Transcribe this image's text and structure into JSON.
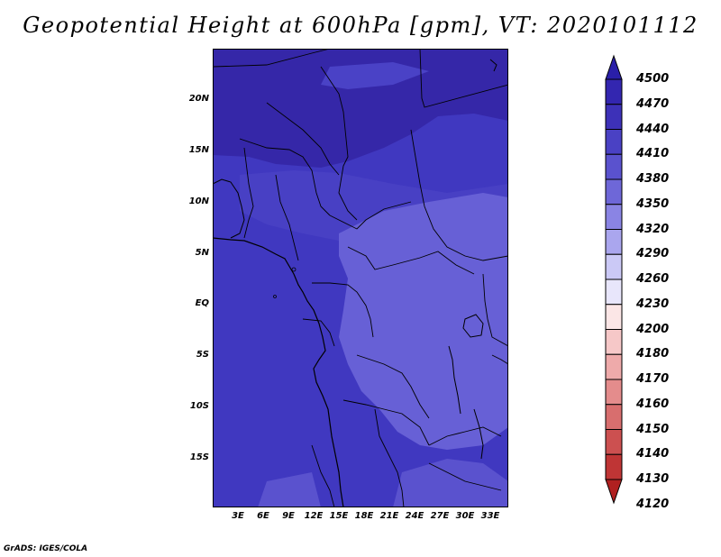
{
  "title": "Geopotential Height at 600hPa [gpm], VT: 2020101112",
  "footer": "GrADS: IGES/COLA",
  "map": {
    "lat_labels": [
      "20N",
      "15N",
      "10N",
      "5N",
      "EQ",
      "5S",
      "10S",
      "15S"
    ],
    "lon_labels": [
      "3E",
      "6E",
      "9E",
      "12E",
      "15E",
      "18E",
      "21E",
      "24E",
      "27E",
      "30E",
      "33E"
    ]
  },
  "colorbar": {
    "levels": [
      "4500",
      "4470",
      "4440",
      "4410",
      "4380",
      "4350",
      "4320",
      "4290",
      "4260",
      "4230",
      "4200",
      "4180",
      "4170",
      "4160",
      "4150",
      "4140",
      "4130",
      "4120"
    ],
    "colors": [
      "#2a1fa8",
      "#3326b0",
      "#3d31b8",
      "#4a41c4",
      "#5a52ce",
      "#6e67d8",
      "#8a84e4",
      "#aaa6ee",
      "#cbc9f6",
      "#e8e6fb",
      "#fbe6e6",
      "#f6c8c8",
      "#eeaaaa",
      "#e48c8c",
      "#d86e6e",
      "#cc5050",
      "#bf3535",
      "#b02020"
    ]
  }
}
